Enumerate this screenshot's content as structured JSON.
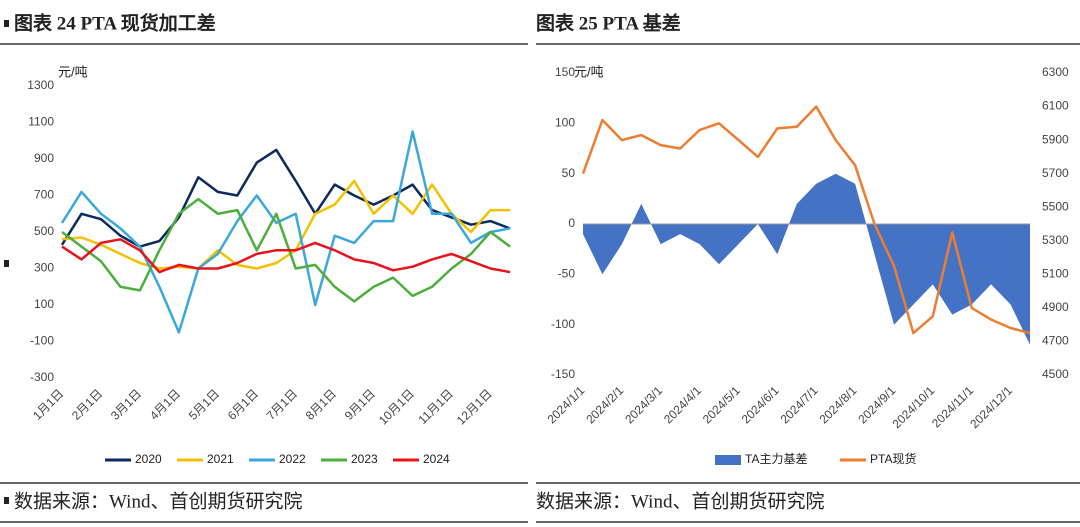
{
  "chart_data": [
    {
      "type": "line",
      "title": "图表 24 PTA 现货加工差",
      "source": "数据来源：Wind、首创期货研究院",
      "y_label": "元/吨",
      "categories": [
        "1月1日",
        null,
        "2月1日",
        null,
        "3月1日",
        null,
        "4月1日",
        null,
        "5月1日",
        null,
        "6月1日",
        null,
        "7月1日",
        null,
        "8月1日",
        null,
        "9月1日",
        null,
        "10月1日",
        null,
        "11月1日",
        null,
        "12月1日",
        null
      ],
      "ylim": [
        -300,
        1300
      ],
      "yticks": [
        -300,
        -100,
        100,
        300,
        500,
        700,
        900,
        1100,
        1300
      ],
      "grid": false,
      "series": [
        {
          "name": "2020",
          "color": "#0b2a5e",
          "values": [
            430,
            600,
            570,
            480,
            420,
            450,
            580,
            800,
            720,
            700,
            880,
            950,
            780,
            600,
            760,
            700,
            650,
            700,
            760,
            620,
            580,
            540,
            560,
            520
          ]
        },
        {
          "name": "2021",
          "color": "#f5c000",
          "values": [
            460,
            470,
            430,
            380,
            330,
            300,
            310,
            300,
            400,
            320,
            300,
            330,
            400,
            600,
            650,
            780,
            600,
            700,
            600,
            760,
            600,
            500,
            620,
            620
          ]
        },
        {
          "name": "2022",
          "color": "#3aa8dd",
          "values": [
            550,
            720,
            600,
            520,
            420,
            200,
            -50,
            300,
            380,
            560,
            700,
            550,
            600,
            100,
            480,
            440,
            560,
            560,
            1050,
            600,
            600,
            440,
            500,
            520
          ]
        },
        {
          "name": "2023",
          "color": "#4caf3c",
          "values": [
            500,
            420,
            340,
            200,
            180,
            400,
            600,
            680,
            600,
            620,
            400,
            600,
            300,
            320,
            200,
            120,
            200,
            250,
            150,
            200,
            300,
            380,
            500,
            420
          ]
        },
        {
          "name": "2024",
          "color": "#e8141b",
          "values": [
            420,
            350,
            440,
            460,
            400,
            280,
            320,
            300,
            300,
            330,
            380,
            400,
            400,
            440,
            400,
            350,
            330,
            290,
            310,
            350,
            380,
            340,
            300,
            280
          ]
        }
      ]
    },
    {
      "type": "line",
      "title": "图表 25 PTA 基差",
      "source": "数据来源：Wind、首创期货研究院",
      "y_label": "元/吨",
      "categories": [
        "2024/1/1",
        null,
        "2024/2/1",
        null,
        "2024/3/1",
        null,
        "2024/4/1",
        null,
        "2024/5/1",
        null,
        "2024/6/1",
        null,
        "2024/7/1",
        null,
        "2024/8/1",
        null,
        "2024/9/1",
        null,
        "2024/10/1",
        null,
        "2024/11/1",
        null,
        "2024/12/1",
        null
      ],
      "ylim": [
        -150,
        150
      ],
      "yticks": [
        -150,
        -100,
        -50,
        0,
        50,
        100,
        150
      ],
      "y2lim": [
        4500,
        6300
      ],
      "y2ticks": [
        4500,
        4700,
        4900,
        5100,
        5300,
        5500,
        5700,
        5900,
        6100,
        6300
      ],
      "grid": false,
      "series": [
        {
          "name": "TA主力基差",
          "type": "area",
          "color": "#4472c4",
          "values": [
            -10,
            -50,
            -20,
            20,
            -20,
            -10,
            -20,
            -40,
            -20,
            0,
            -30,
            20,
            40,
            50,
            40,
            -30,
            -100,
            -80,
            -60,
            -90,
            -80,
            -60,
            -80,
            -120
          ]
        },
        {
          "name": "PTA现货",
          "type": "line",
          "axis": "y2",
          "color": "#ed7d31",
          "values": [
            5700,
            6020,
            5900,
            5930,
            5870,
            5850,
            5960,
            6000,
            5900,
            5800,
            5970,
            5980,
            6100,
            5900,
            5750,
            5400,
            5150,
            4750,
            4850,
            5350,
            4900,
            4830,
            4780,
            4750
          ]
        }
      ]
    }
  ]
}
